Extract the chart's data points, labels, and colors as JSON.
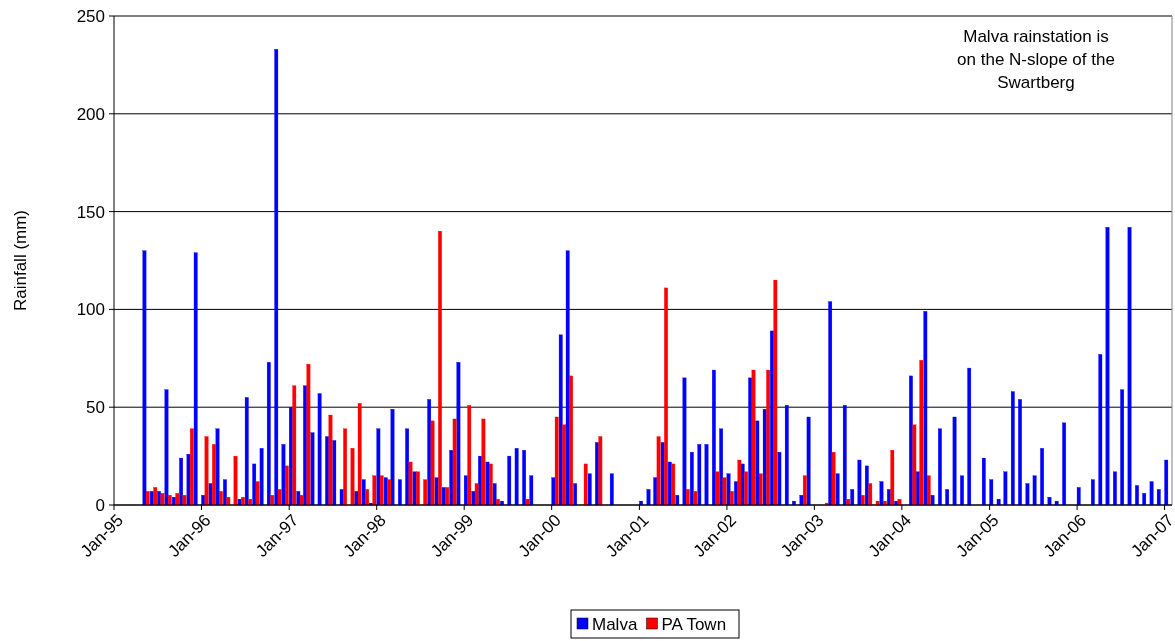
{
  "chart_data": {
    "type": "bar",
    "ylabel": "Rainfall (mm)",
    "ylim": [
      0,
      250
    ],
    "yticks": [
      0,
      50,
      100,
      150,
      200,
      250
    ],
    "xlim": [
      "1995-01",
      "2007-02"
    ],
    "xticks": [
      {
        "value": "1995-01",
        "label": "Jan-95"
      },
      {
        "value": "1996-01",
        "label": "Jan-96"
      },
      {
        "value": "1997-01",
        "label": "Jan-97"
      },
      {
        "value": "1998-01",
        "label": "Jan-98"
      },
      {
        "value": "1999-01",
        "label": "Jan-99"
      },
      {
        "value": "2000-01",
        "label": "Jan-00"
      },
      {
        "value": "2001-01",
        "label": "Jan-01"
      },
      {
        "value": "2002-01",
        "label": "Jan-02"
      },
      {
        "value": "2003-01",
        "label": "Jan-03"
      },
      {
        "value": "2004-01",
        "label": "Jan-04"
      },
      {
        "value": "2005-01",
        "label": "Jan-05"
      },
      {
        "value": "2006-01",
        "label": "Jan-06"
      },
      {
        "value": "2007-01",
        "label": "Jan-07"
      }
    ],
    "grid": "y",
    "legend": "bottom",
    "annotations": [
      "Malva rainstation is on the N-slope of the Swartberg"
    ],
    "series": [
      {
        "name": "Malva",
        "color": "#0000ff",
        "x": [
          "1995-05-15",
          "1995-06-15",
          "1995-07-15",
          "1995-08-15",
          "1995-09-15",
          "1995-10-15",
          "1995-11-15",
          "1995-12-15",
          "1996-01-15",
          "1996-02-15",
          "1996-03-15",
          "1996-04-15",
          "1996-06-15",
          "1996-07-15",
          "1996-08-15",
          "1996-09-15",
          "1996-10-15",
          "1996-11-15",
          "1996-12-15",
          "1997-01-15",
          "1997-02-15",
          "1997-03-15",
          "1997-04-15",
          "1997-05-15",
          "1997-06-15",
          "1997-07-15",
          "1997-08-15",
          "1997-10-15",
          "1997-11-15",
          "1997-12-15",
          "1998-01-15",
          "1998-02-15",
          "1998-03-15",
          "1998-04-15",
          "1998-05-15",
          "1998-06-15",
          "1998-08-15",
          "1998-09-15",
          "1998-10-15",
          "1998-11-15",
          "1998-12-15",
          "1999-01-15",
          "1999-02-15",
          "1999-03-15",
          "1999-04-15",
          "1999-05-15",
          "1999-06-15",
          "1999-07-15",
          "1999-08-15",
          "1999-09-15",
          "1999-10-15",
          "2000-01-15",
          "2000-02-15",
          "2000-03-15",
          "2000-04-15",
          "2000-06-15",
          "2000-07-15",
          "2000-09-15",
          "2001-01-15",
          "2001-02-15",
          "2001-03-15",
          "2001-04-15",
          "2001-05-15",
          "2001-06-15",
          "2001-07-15",
          "2001-08-15",
          "2001-09-15",
          "2001-10-15",
          "2001-11-15",
          "2001-12-15",
          "2002-01-15",
          "2002-02-15",
          "2002-03-15",
          "2002-04-15",
          "2002-05-15",
          "2002-06-15",
          "2002-07-15",
          "2002-08-15",
          "2002-09-15",
          "2002-10-15",
          "2002-11-15",
          "2002-12-15",
          "2003-03-15",
          "2003-04-15",
          "2003-05-15",
          "2003-06-15",
          "2003-07-15",
          "2003-08-15",
          "2003-10-15",
          "2003-11-15",
          "2003-12-15",
          "2004-02-15",
          "2004-03-15",
          "2004-04-15",
          "2004-05-15",
          "2004-06-15",
          "2004-07-15",
          "2004-08-15",
          "2004-09-15",
          "2004-10-15",
          "2004-12-15",
          "2005-01-15",
          "2005-02-15",
          "2005-03-15",
          "2005-04-15",
          "2005-05-15",
          "2005-06-15",
          "2005-07-15",
          "2005-08-15",
          "2005-09-15",
          "2005-10-15",
          "2005-11-15",
          "2006-01-15",
          "2006-03-15",
          "2006-04-15",
          "2006-05-15",
          "2006-06-15",
          "2006-07-15",
          "2006-08-15",
          "2006-09-15",
          "2006-10-15",
          "2006-11-15",
          "2006-12-15",
          "2007-01-15"
        ],
        "values": [
          130,
          7,
          7,
          59,
          4,
          24,
          26,
          129,
          5,
          11,
          39,
          13,
          3,
          55,
          21,
          29,
          73,
          233,
          31,
          50,
          7,
          61,
          37,
          57,
          35,
          33,
          8,
          7,
          13,
          1,
          39,
          14,
          49,
          13,
          39,
          17,
          54,
          14,
          9,
          28,
          73,
          15,
          7,
          25,
          22,
          11,
          2,
          25,
          29,
          28,
          15,
          14,
          87,
          130,
          11,
          16,
          32,
          16,
          2,
          8,
          14,
          32,
          22,
          5,
          65,
          27,
          31,
          31,
          69,
          39,
          16,
          12,
          21,
          65,
          43,
          49,
          89,
          27,
          51,
          2,
          5,
          45,
          104,
          16,
          51,
          8,
          23,
          20,
          12,
          8,
          2,
          66,
          17,
          99,
          5,
          39,
          8,
          45,
          15,
          70,
          24,
          13,
          3,
          17,
          58,
          54,
          11,
          15,
          29,
          4,
          2,
          42,
          9,
          13,
          77,
          142,
          17,
          59,
          142,
          10,
          6,
          12,
          8,
          23
        ]
      },
      {
        "name": "PA Town",
        "color": "#ff0000",
        "x": [
          "1995-05-15",
          "1995-06-15",
          "1995-07-15",
          "1995-08-15",
          "1995-09-15",
          "1995-10-15",
          "1995-11-15",
          "1996-01-15",
          "1996-02-15",
          "1996-03-15",
          "1996-04-15",
          "1996-05-15",
          "1996-06-15",
          "1996-07-15",
          "1996-08-15",
          "1996-10-15",
          "1996-11-15",
          "1996-12-15",
          "1997-01-15",
          "1997-02-15",
          "1997-03-15",
          "1997-06-15",
          "1997-08-15",
          "1997-09-15",
          "1997-10-15",
          "1997-11-15",
          "1997-12-15",
          "1998-01-15",
          "1998-02-15",
          "1998-05-15",
          "1998-06-15",
          "1998-07-15",
          "1998-08-15",
          "1998-09-15",
          "1998-10-15",
          "1998-11-15",
          "1999-01-15",
          "1999-02-15",
          "1999-03-15",
          "1999-04-15",
          "1999-05-15",
          "1999-09-15",
          "2000-01-15",
          "2000-02-15",
          "2000-03-15",
          "2000-05-15",
          "2000-07-15",
          "2001-03-15",
          "2001-04-15",
          "2001-05-15",
          "2001-07-15",
          "2001-08-15",
          "2001-11-15",
          "2001-12-15",
          "2002-01-15",
          "2002-02-15",
          "2002-03-15",
          "2002-04-15",
          "2002-05-15",
          "2002-06-15",
          "2002-07-15",
          "2002-11-15",
          "2003-02-15",
          "2003-03-15",
          "2003-05-15",
          "2003-07-15",
          "2003-08-15",
          "2003-09-15",
          "2003-10-15",
          "2003-11-15",
          "2003-12-15",
          "2004-02-15",
          "2004-03-15",
          "2004-04-15"
        ],
        "values": [
          7,
          9,
          6,
          5,
          6,
          5,
          39,
          35,
          31,
          7,
          4,
          25,
          4,
          3,
          12,
          5,
          8,
          20,
          61,
          5,
          72,
          46,
          39,
          29,
          52,
          8,
          15,
          15,
          13,
          22,
          17,
          13,
          43,
          140,
          9,
          44,
          51,
          11,
          44,
          21,
          3,
          3,
          45,
          41,
          66,
          21,
          35,
          35,
          111,
          21,
          8,
          7,
          17,
          14,
          7,
          23,
          17,
          69,
          16,
          69,
          115,
          15,
          1,
          27,
          3,
          5,
          11,
          2,
          2,
          28,
          3,
          41,
          74,
          15
        ]
      }
    ]
  }
}
